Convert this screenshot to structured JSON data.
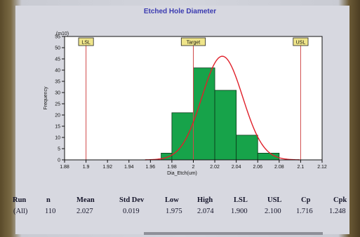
{
  "chart_data": {
    "type": "bar",
    "title": "Etched Hole Diameter",
    "xlabel": "Dia_Etch(um)",
    "ylabel": "Frequency",
    "y_unit_label": "(m10)",
    "xlim": [
      1.88,
      2.12
    ],
    "ylim": [
      0,
      55
    ],
    "x_ticks": [
      "1.88",
      "1.9",
      "1.92",
      "1.94",
      "1.96",
      "1.98",
      "2",
      "2.02",
      "2.04",
      "2.06",
      "2.08",
      "2.1",
      "2.12"
    ],
    "y_ticks": [
      "0",
      "5",
      "10",
      "15",
      "20",
      "25",
      "30",
      "35",
      "40",
      "45",
      "50",
      "55"
    ],
    "bins": [
      {
        "x0": 1.97,
        "x1": 1.98,
        "value": 3
      },
      {
        "x0": 1.98,
        "x1": 2.0,
        "value": 21
      },
      {
        "x0": 2.0,
        "x1": 2.02,
        "value": 41
      },
      {
        "x0": 2.02,
        "x1": 2.04,
        "value": 31
      },
      {
        "x0": 2.04,
        "x1": 2.06,
        "value": 11
      },
      {
        "x0": 2.06,
        "x1": 2.08,
        "value": 3
      }
    ],
    "spec_lines": [
      {
        "label": "LSL",
        "x": 1.9
      },
      {
        "label": "Target",
        "x": 2.0
      },
      {
        "label": "USL",
        "x": 2.1
      }
    ],
    "fit_curve": {
      "type": "normal",
      "mean": 2.027,
      "std": 0.019,
      "n": 110,
      "bin_width": 0.02
    },
    "grid": false,
    "bar_color": "#17a34a",
    "curve_color": "#e0202a",
    "spec_color": "#d04a4a",
    "label_bg": "#efe58a"
  },
  "stats": {
    "headers": [
      "Run",
      "n",
      "Mean",
      "Std Dev",
      "Low",
      "High",
      "LSL",
      "USL",
      "Cp",
      "Cpk"
    ],
    "values": [
      "(All)",
      "110",
      "2.027",
      "0.019",
      "1.975",
      "2.074",
      "1.900",
      "2.100",
      "1.716",
      "1.248"
    ]
  }
}
